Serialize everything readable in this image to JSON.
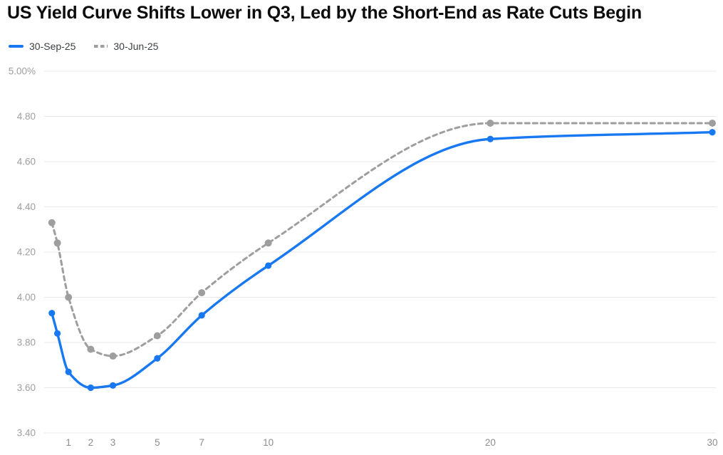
{
  "title": "US Yield Curve Shifts Lower in Q3, Led by the Short-End as Rate Cuts Begin",
  "colors": {
    "series_sep25": "#1778f2",
    "series_jun25": "#9e9e9e",
    "gridline": "#e8e8e8",
    "axis_label": "#9e9e9e",
    "x_axis_label": "#8c8c8c",
    "title": "#0c0c0c",
    "legend_text": "#3c4043",
    "background": "#ffffff"
  },
  "legend": {
    "items": [
      {
        "label": "30-Sep-25",
        "style": "solid"
      },
      {
        "label": "30-Jun-25",
        "style": "dashed"
      }
    ]
  },
  "chart_data": {
    "type": "line",
    "title": "US Yield Curve Shifts Lower in Q3, Led by the Short-End as Rate Cuts Begin",
    "x_unit_hint": "years to maturity",
    "x": [
      0.25,
      0.5,
      1,
      2,
      3,
      5,
      7,
      10,
      20,
      30
    ],
    "series": [
      {
        "name": "30-Sep-25",
        "color": "#1778f2",
        "dashed": false,
        "values": [
          3.93,
          3.84,
          3.67,
          3.6,
          3.61,
          3.73,
          3.92,
          4.14,
          4.7,
          4.73
        ]
      },
      {
        "name": "30-Jun-25",
        "color": "#9e9e9e",
        "dashed": true,
        "values": [
          4.33,
          4.24,
          4.0,
          3.77,
          3.74,
          3.83,
          4.02,
          4.24,
          4.77,
          4.77
        ]
      }
    ],
    "x_tick_values": [
      1,
      2,
      3,
      5,
      7,
      10,
      20,
      30
    ],
    "x_tick_labels": [
      "1",
      "2",
      "3",
      "5",
      "7",
      "10",
      "20",
      "30"
    ],
    "y_tick_values": [
      5.0,
      4.8,
      4.6,
      4.4,
      4.2,
      4.0,
      3.8,
      3.6,
      3.4
    ],
    "y_tick_labels": [
      "5.00%",
      "4.80",
      "4.60",
      "4.40",
      "4.20",
      "4.00",
      "3.80",
      "3.60",
      "3.40"
    ],
    "ylim": [
      3.4,
      5.0
    ],
    "xlim": [
      0,
      30
    ],
    "grid": true,
    "smooth": true,
    "legend_position": "top-left"
  }
}
